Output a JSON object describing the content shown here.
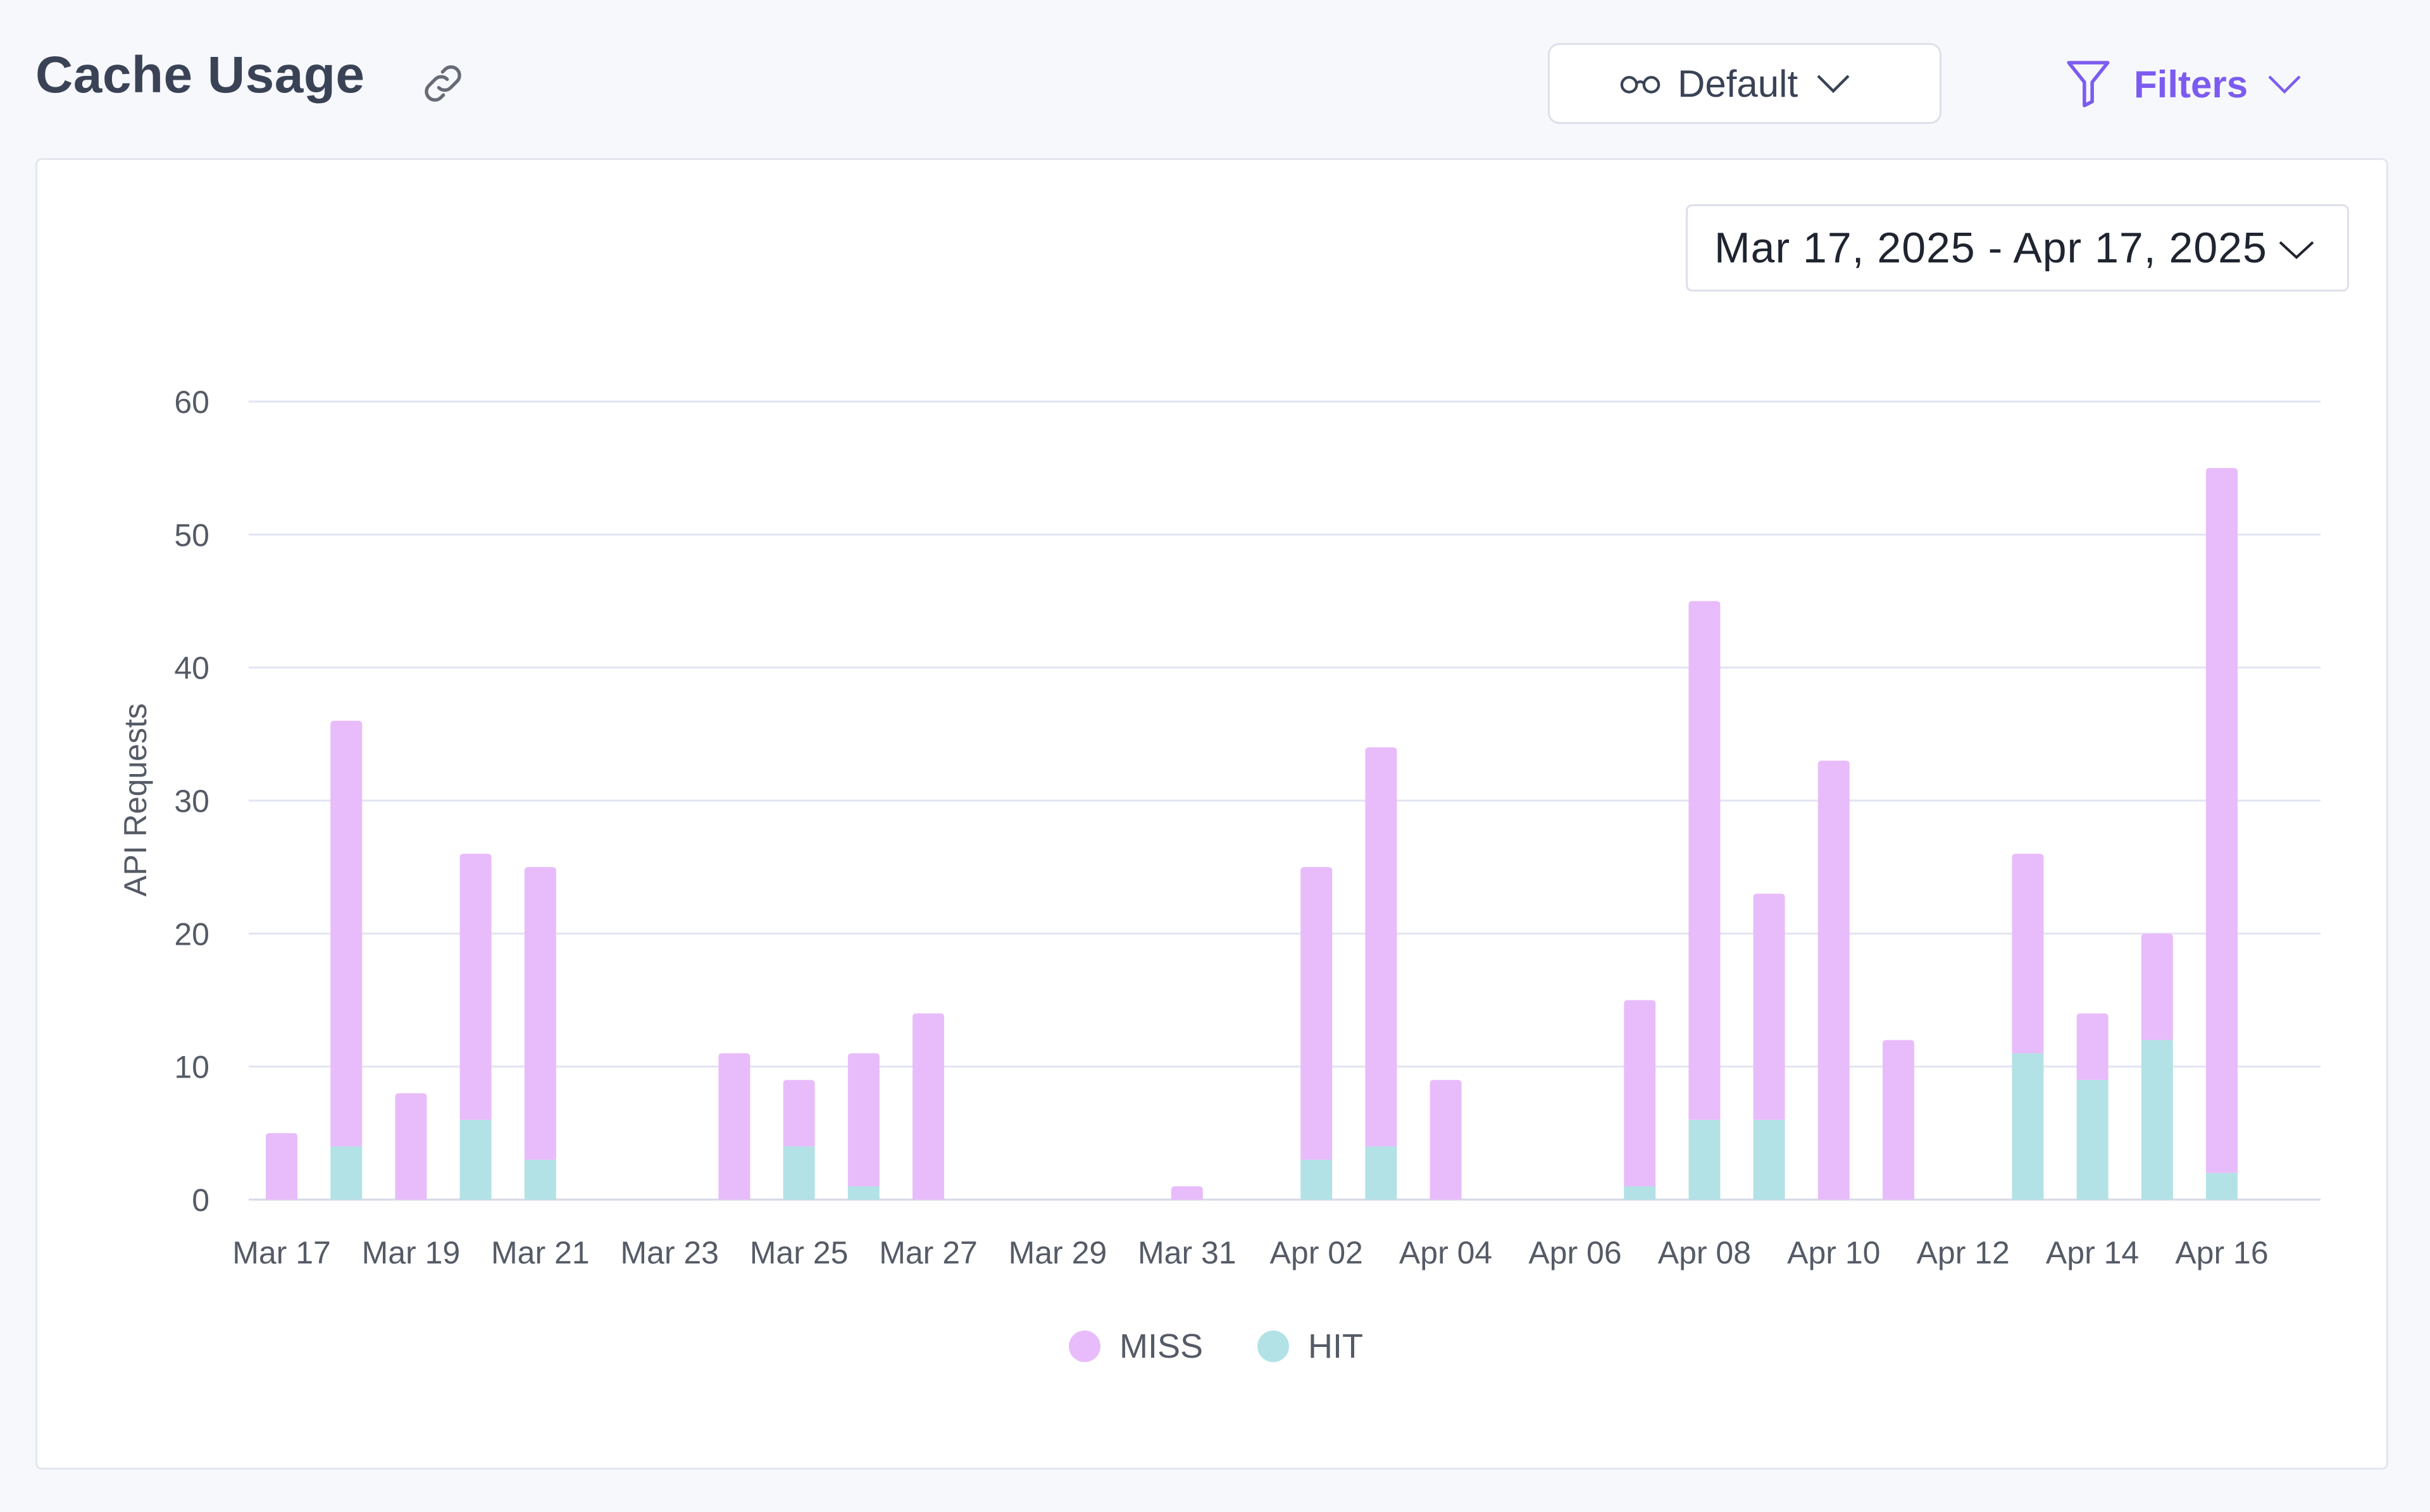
{
  "header": {
    "title": "Cache Usage",
    "view_label": "Default",
    "filters_label": "Filters"
  },
  "icons": [
    "link-icon",
    "glasses-icon",
    "chevron-down-icon",
    "funnel-icon"
  ],
  "colors": {
    "accent": "#7c5cf0",
    "miss": "#e8bcfa",
    "hit": "#b2e2e6",
    "grid": "#e2e4f3"
  },
  "date_range": {
    "label": "Mar 17, 2025 - Apr 17, 2025"
  },
  "chart_data": {
    "type": "bar",
    "stacked": true,
    "ylabel": "API Requests",
    "xlabel": "",
    "ylim": [
      0,
      60
    ],
    "yticks": [
      0,
      10,
      20,
      30,
      40,
      50,
      60
    ],
    "grid": true,
    "legend_placement": "bottom-center",
    "categories": [
      "Mar 17",
      "Mar 18",
      "Mar 19",
      "Mar 20",
      "Mar 21",
      "Mar 22",
      "Mar 23",
      "Mar 24",
      "Mar 25",
      "Mar 26",
      "Mar 27",
      "Mar 28",
      "Mar 29",
      "Mar 30",
      "Mar 31",
      "Apr 01",
      "Apr 02",
      "Apr 03",
      "Apr 04",
      "Apr 05",
      "Apr 06",
      "Apr 07",
      "Apr 08",
      "Apr 09",
      "Apr 10",
      "Apr 11",
      "Apr 12",
      "Apr 13",
      "Apr 14",
      "Apr 15",
      "Apr 16"
    ],
    "tick_labels": [
      "Mar 17",
      "Mar 19",
      "Mar 21",
      "Mar 23",
      "Mar 25",
      "Mar 27",
      "Mar 29",
      "Mar 31",
      "Apr 02",
      "Apr 04",
      "Apr 06",
      "Apr 08",
      "Apr 10",
      "Apr 12",
      "Apr 14",
      "Apr 16"
    ],
    "series": [
      {
        "name": "HIT",
        "color": "#b2e2e6",
        "values": [
          0,
          4,
          0,
          6,
          3,
          0,
          0,
          0,
          4,
          1,
          0,
          0,
          0,
          0,
          0,
          0,
          3,
          4,
          0,
          0,
          0,
          1,
          6,
          6,
          0,
          0,
          0,
          11,
          9,
          12,
          2
        ]
      },
      {
        "name": "MISS",
        "color": "#e8bcfa",
        "values": [
          5,
          32,
          8,
          20,
          22,
          0,
          0,
          11,
          5,
          10,
          14,
          0,
          0,
          0,
          1,
          0,
          22,
          30,
          9,
          0,
          0,
          14,
          39,
          17,
          33,
          12,
          0,
          15,
          5,
          8,
          53
        ]
      }
    ],
    "legend": [
      "MISS",
      "HIT"
    ]
  }
}
